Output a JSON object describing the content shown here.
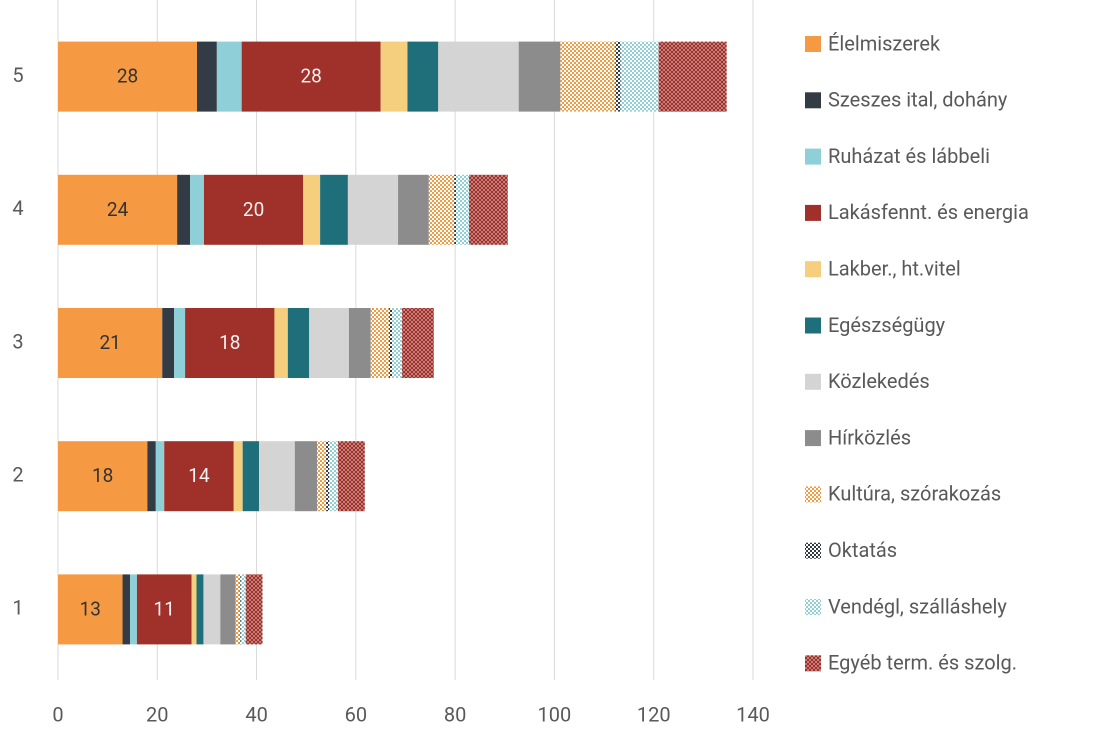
{
  "chart_data": {
    "type": "stacked-barh",
    "categories": [
      "1",
      "2",
      "3",
      "4",
      "5"
    ],
    "xlim": [
      0,
      140
    ],
    "xticks": [
      0,
      20,
      40,
      60,
      80,
      100,
      120,
      140
    ],
    "grid": true,
    "legend": "right",
    "series": [
      {
        "name": "Élelmiszerek",
        "color": "#f59a42",
        "labels": true,
        "values": [
          13,
          18,
          21,
          24,
          28
        ]
      },
      {
        "name": "Szeszes ital, dohány",
        "color": "#333b45",
        "values": [
          1.5,
          1.7,
          2.4,
          2.6,
          4
        ]
      },
      {
        "name": "Ruházat és lábbeli",
        "color": "#8ecfd8",
        "values": [
          1.4,
          1.7,
          2.2,
          2.8,
          5
        ]
      },
      {
        "name": "Lakásfennt. és energia",
        "color": "#a0302a",
        "labels": true,
        "values": [
          11,
          14,
          18,
          20,
          28
        ]
      },
      {
        "name": "Lakber., ht.vitel",
        "color": "#f5cf7e",
        "values": [
          1,
          1.8,
          2.7,
          3.4,
          5.4
        ]
      },
      {
        "name": "Egészségügy",
        "color": "#1f6f7a",
        "values": [
          1.4,
          3.3,
          4.3,
          5.6,
          6.2
        ]
      },
      {
        "name": "Közlekedés",
        "color": "#d4d4d4",
        "values": [
          3.4,
          7.2,
          8,
          10.1,
          16.2
        ]
      },
      {
        "name": "Hírközlés",
        "color": "#8c8c8c",
        "values": [
          3.1,
          4.5,
          4.4,
          6.2,
          8.4
        ]
      },
      {
        "name": "Kultúra, szórakozás",
        "color": "#f59a42",
        "pattern": "dots",
        "values": [
          0.8,
          1.8,
          3.7,
          5.1,
          11.1
        ]
      },
      {
        "name": "Oktatás",
        "color": "#333b45",
        "pattern": "dots",
        "values": [
          0.2,
          0.6,
          0.6,
          0.4,
          1
        ]
      },
      {
        "name": "Vendégl, szálláshely",
        "color": "#8ecfd8",
        "pattern": "dots",
        "values": [
          1,
          1.8,
          2,
          2.6,
          7.7
        ]
      },
      {
        "name": "Egyéb term. és szolg.",
        "color": "#a0302a",
        "pattern": "cross",
        "values": [
          3.4,
          5.4,
          6.4,
          7.8,
          13.7
        ]
      }
    ]
  }
}
